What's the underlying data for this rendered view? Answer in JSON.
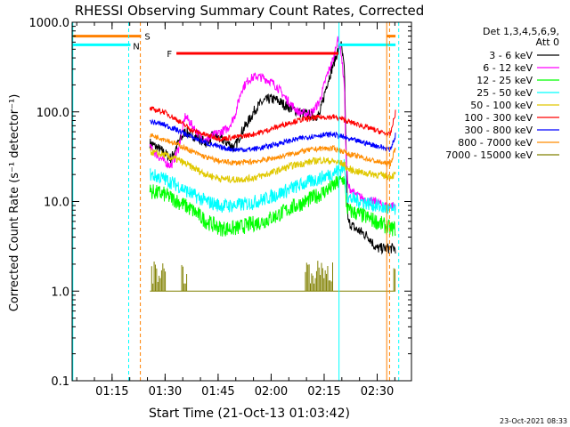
{
  "chart_data": {
    "type": "line",
    "title": "RHESSI Observing Summary Count Rates, Corrected",
    "xlabel": "Start Time (21-Oct-13 01:03:42)",
    "ylabel": "Corrected Count Rate (s⁻¹ detector⁻¹)",
    "yscale": "log",
    "ylim": [
      0.1,
      1000.0
    ],
    "xlim_minutes_after_start": [
      0,
      96
    ],
    "x_tick_labels": [
      "01:15",
      "01:30",
      "01:45",
      "02:00",
      "02:15",
      "02:30"
    ],
    "x_tick_minutes_after_start": [
      11.3,
      26.3,
      41.3,
      56.3,
      71.3,
      86.3
    ],
    "y_tick_labels": [
      "0.1",
      "1.0",
      "10.0",
      "100.0",
      "1000.0"
    ],
    "y_tick_values": [
      0.1,
      1,
      10,
      100,
      1000
    ],
    "legend": {
      "header": [
        "Det 1,3,4,5,6,9,",
        "Att 0"
      ],
      "placement": "right-outside",
      "entries": [
        {
          "label": "3 - 6 keV",
          "color": "#000000"
        },
        {
          "label": "6 - 12 keV",
          "color": "#ff00ff"
        },
        {
          "label": "12 - 25 keV",
          "color": "#00ff00"
        },
        {
          "label": "25 - 50 keV",
          "color": "#00ffff"
        },
        {
          "label": "50 - 100 keV",
          "color": "#e0c800"
        },
        {
          "label": "100 - 300 keV",
          "color": "#ff0000"
        },
        {
          "label": "300 - 800 keV",
          "color": "#0000ff"
        },
        {
          "label": "800 - 7000 keV",
          "color": "#ff8c00"
        },
        {
          "label": "7000 - 15000 keV",
          "color": "#808000"
        }
      ]
    },
    "flags": [
      {
        "label": "S",
        "color": "#ff8000",
        "y_value": 700
      },
      {
        "label": "N",
        "color": "#00ffff",
        "y_value": 560
      },
      {
        "label": "F",
        "color": "#ff0000",
        "y_value": 450
      }
    ],
    "series": [
      {
        "x": [
          22,
          24,
          26,
          28,
          30,
          32,
          34,
          36,
          38,
          40,
          42,
          44,
          46,
          48,
          50,
          52,
          54,
          56,
          58,
          60,
          62,
          64,
          66,
          68,
          70,
          72,
          74,
          76,
          77,
          77.5,
          78,
          80,
          82,
          84,
          86,
          88,
          90,
          91.5
        ],
        "values": [
          45,
          40,
          35,
          30,
          45,
          60,
          55,
          50,
          45,
          55,
          50,
          45,
          40,
          60,
          80,
          110,
          130,
          140,
          135,
          120,
          110,
          100,
          95,
          90,
          92,
          200,
          350,
          600,
          300,
          40,
          6,
          5,
          4.5,
          4,
          3,
          3,
          3,
          3
        ]
      },
      {
        "x": [
          22,
          24,
          26,
          28,
          30,
          32,
          34,
          36,
          38,
          40,
          42,
          44,
          46,
          48,
          50,
          52,
          54,
          56,
          58,
          60,
          62,
          64,
          66,
          68,
          70,
          72,
          74,
          75,
          76,
          77,
          77.5,
          78,
          80,
          82,
          84,
          86,
          88,
          90,
          91.5
        ],
        "values": [
          40,
          33,
          28,
          25,
          38,
          90,
          70,
          55,
          48,
          55,
          60,
          65,
          90,
          180,
          230,
          250,
          240,
          220,
          190,
          150,
          120,
          100,
          95,
          100,
          130,
          250,
          400,
          650,
          500,
          200,
          30,
          15,
          12,
          11,
          10,
          10,
          9,
          9,
          9
        ]
      },
      {
        "x": [
          22,
          26,
          30,
          34,
          38,
          42,
          46,
          50,
          54,
          58,
          62,
          66,
          70,
          74,
          76,
          77,
          77.5,
          78,
          82,
          86,
          90,
          91.5
        ],
        "values": [
          13,
          12,
          10,
          8,
          6,
          5,
          5,
          5.5,
          6,
          7,
          8.5,
          10,
          12,
          15,
          17,
          18,
          10,
          8,
          7,
          6,
          5,
          5
        ]
      },
      {
        "x": [
          22,
          26,
          30,
          34,
          38,
          42,
          46,
          50,
          54,
          58,
          62,
          66,
          70,
          74,
          76,
          77,
          77.5,
          78,
          82,
          86,
          90,
          91.5
        ],
        "values": [
          20,
          18,
          15,
          12,
          10,
          9,
          9,
          9.5,
          10.5,
          12,
          14,
          16,
          18,
          21,
          23,
          25,
          14,
          11,
          10,
          9,
          8,
          8
        ]
      },
      {
        "x": [
          22,
          26,
          30,
          34,
          38,
          42,
          46,
          50,
          54,
          58,
          62,
          66,
          70,
          74,
          77,
          77.5,
          78,
          82,
          86,
          90,
          91.5
        ],
        "values": [
          36,
          33,
          29,
          24,
          20,
          18,
          17.5,
          18,
          19.5,
          22,
          25,
          27,
          29,
          28,
          26,
          24,
          23,
          21,
          20,
          19,
          20
        ]
      },
      {
        "x": [
          22,
          26,
          30,
          34,
          38,
          42,
          46,
          50,
          54,
          58,
          62,
          66,
          70,
          74,
          77,
          78,
          82,
          86,
          90,
          91.5
        ],
        "values": [
          108,
          100,
          80,
          62,
          55,
          50,
          52,
          55,
          60,
          68,
          77,
          83,
          87,
          88,
          82,
          78,
          70,
          62,
          55,
          100
        ]
      },
      {
        "x": [
          22,
          26,
          30,
          34,
          38,
          42,
          46,
          50,
          54,
          58,
          62,
          66,
          70,
          74,
          77,
          78,
          82,
          86,
          90,
          91.5
        ],
        "values": [
          78,
          72,
          62,
          52,
          45,
          40,
          38,
          38,
          40,
          44,
          48,
          52,
          55,
          56,
          52,
          50,
          46,
          42,
          38,
          55
        ]
      },
      {
        "x": [
          22,
          26,
          30,
          34,
          38,
          42,
          46,
          50,
          54,
          58,
          62,
          66,
          70,
          74,
          77,
          78,
          82,
          86,
          90,
          91.5
        ],
        "values": [
          55,
          50,
          43,
          36,
          31,
          28,
          27,
          27.5,
          29,
          31,
          34,
          37,
          39,
          39,
          36,
          34,
          31,
          28,
          26,
          40
        ]
      },
      {
        "x": [
          22,
          30,
          31,
          50,
          55,
          62,
          70,
          76,
          77,
          91.5
        ],
        "values": [
          1,
          1,
          1,
          1,
          1,
          1,
          1,
          1,
          1,
          1
        ]
      }
    ]
  }
}
